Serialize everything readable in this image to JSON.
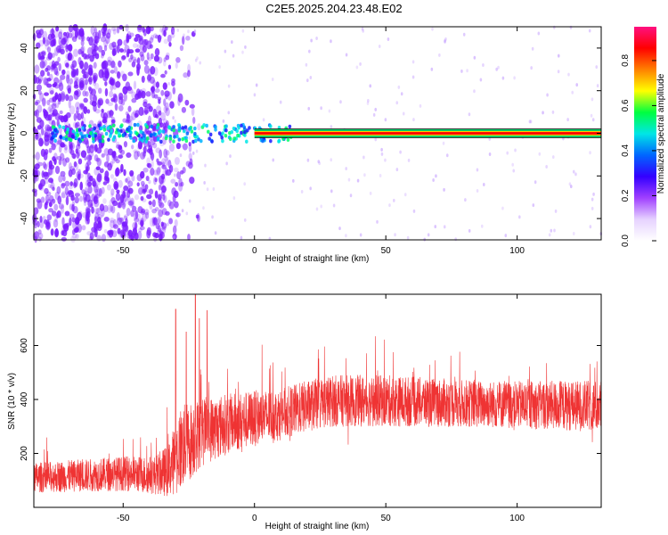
{
  "title": "C2E5.2025.204.23.48.E02",
  "chart_data": [
    {
      "type": "heatmap",
      "xlabel": "Height of straight line (km)",
      "ylabel": "Frequency (Hz)",
      "xlim": [
        -84,
        132
      ],
      "ylim": [
        -50,
        50
      ],
      "xticks": [
        -50,
        0,
        50,
        100
      ],
      "yticks": [
        -40,
        -20,
        0,
        20,
        40
      ],
      "xtick_labels": [
        "-50",
        "0",
        "50",
        "100"
      ],
      "ytick_labels": [
        "-40",
        "-20",
        "0",
        "20",
        "40"
      ],
      "colorbar": {
        "label": "Normalized spectral amplitude",
        "range": [
          0,
          0.95
        ],
        "ticks": [
          0.0,
          0.2,
          0.4,
          0.6,
          0.8
        ],
        "tick_labels": [
          "0.0",
          "0.2",
          "0.4",
          "0.6",
          "0.8"
        ],
        "colors": [
          "#ffffff",
          "#e6d2ff",
          "#a040ff",
          "#3300ff",
          "#0066ff",
          "#00e6e6",
          "#00ff40",
          "#ffff00",
          "#ff8000",
          "#ff0000",
          "#ff1080"
        ]
      },
      "ridge_frequency": 0,
      "ridge_start_km": 0,
      "ridge_end_km": 132,
      "ridge_color": "#ff0000",
      "noise_region_end_km": -33,
      "noise_color": "#7a1aff",
      "grid": false
    },
    {
      "type": "line",
      "xlabel": "Height of straight line (km)",
      "ylabel": "SNR (10 * v/v)",
      "xlim": [
        -84,
        132
      ],
      "ylim": [
        0,
        790
      ],
      "xticks": [
        -50,
        0,
        50,
        100
      ],
      "yticks": [
        200,
        400,
        600
      ],
      "xtick_labels": [
        "-50",
        "0",
        "50",
        "100"
      ],
      "ytick_labels": [
        "200",
        "400",
        "600"
      ],
      "series": [
        {
          "color": "#ef3333",
          "trend_x": [
            -84,
            -50,
            -38,
            -33,
            -28,
            -20,
            -10,
            0,
            10,
            20,
            30,
            50,
            80,
            100,
            132
          ],
          "trend_y": [
            110,
            125,
            120,
            135,
            220,
            280,
            310,
            330,
            345,
            375,
            395,
            395,
            385,
            380,
            375
          ],
          "spread": [
            70,
            80,
            90,
            120,
            200,
            160,
            140,
            130,
            120,
            120,
            120,
            120,
            110,
            110,
            120
          ],
          "peaks_x": [
            -30,
            -26,
            -22.5,
            -21,
            -18
          ],
          "peaks_y": [
            735,
            650,
            790,
            700,
            730
          ]
        }
      ],
      "grid": false
    }
  ]
}
